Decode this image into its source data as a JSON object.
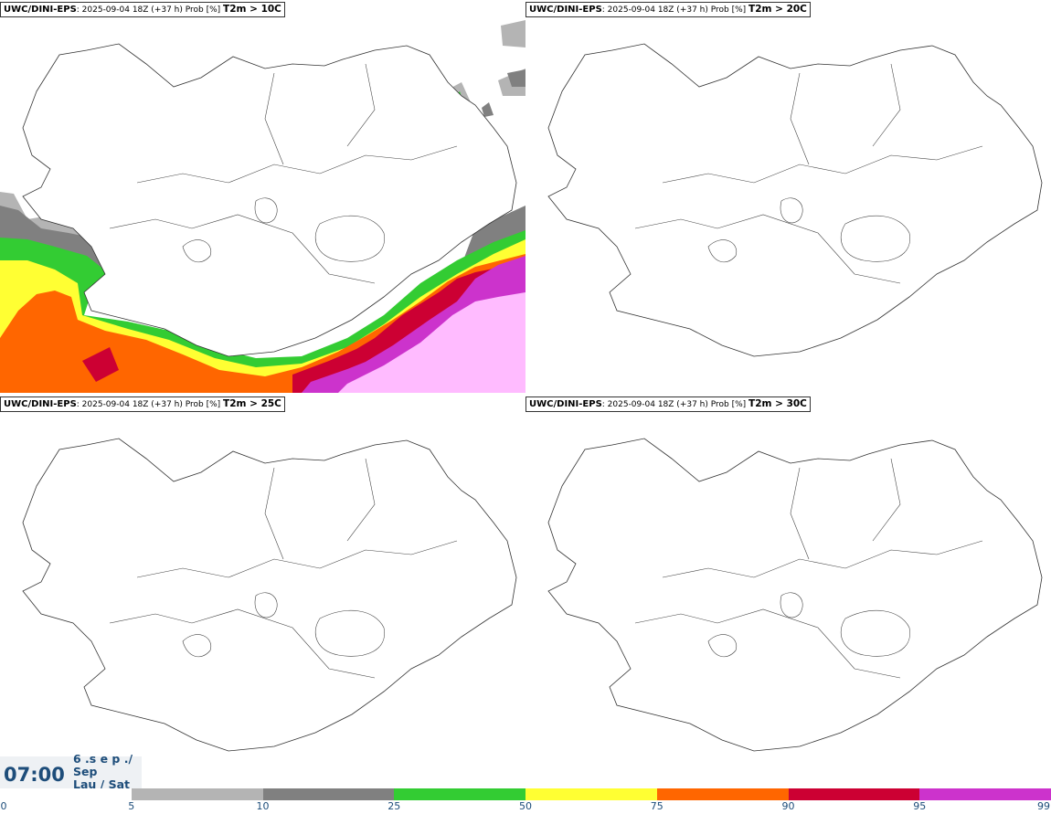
{
  "panels": [
    {
      "model": "UWC/DINI-EPS",
      "run": ": 2025-09-04 18Z (+37 h) Prob [%]",
      "param": "T2m > 10C"
    },
    {
      "model": "UWC/DINI-EPS",
      "run": ": 2025-09-04 18Z (+37 h) Prob [%]",
      "param": "T2m > 20C"
    },
    {
      "model": "UWC/DINI-EPS",
      "run": ": 2025-09-04 18Z (+37 h) Prob [%]",
      "param": "T2m > 25C"
    },
    {
      "model": "UWC/DINI-EPS",
      "run": ": 2025-09-04 18Z (+37 h) Prob [%]",
      "param": "T2m > 30C"
    }
  ],
  "time": "07:00",
  "date_lines": [
    "6 .s e p ./",
    "Sep",
    "Lau / Sat"
  ],
  "colorbar": {
    "ticks": [
      "0",
      "5",
      "10",
      "25",
      "50",
      "75",
      "90",
      "95",
      "99"
    ],
    "colors": [
      "#ffffff",
      "#b4b4b4",
      "#808080",
      "#33cc33",
      "#ffff33",
      "#ff6600",
      "#cc0033",
      "#cc33cc",
      "#ffbbff"
    ]
  }
}
